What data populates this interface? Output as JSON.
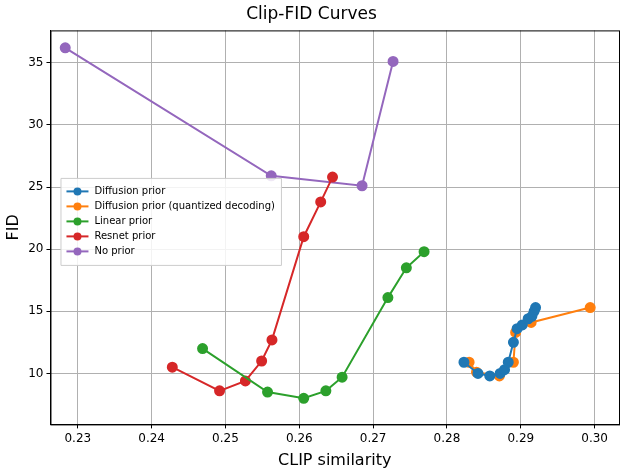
{
  "chart_data": {
    "type": "line",
    "title": "Clip-FID Curves",
    "x_label": "CLIP similarity",
    "y_label": "FID",
    "xlim": [
      0.2263,
      0.3033
    ],
    "ylim": [
      5.9,
      37.6
    ],
    "xticks": [
      0.23,
      0.24,
      0.25,
      0.26,
      0.27,
      0.28,
      0.29,
      {
        "value": 0.3,
        "label": "0.30"
      }
    ],
    "yticks": [
      10,
      15,
      20,
      25,
      30,
      35
    ],
    "grid": true,
    "legend": "center left",
    "marker": "circle",
    "line_style": "solid",
    "series": [
      {
        "name": "Diffusion prior",
        "color": "#1f77b4",
        "x": [
          0.2823,
          0.2842,
          0.2858,
          0.2872,
          0.2878,
          0.2883,
          0.289,
          0.2895,
          0.2902,
          0.291,
          0.2915,
          0.2918,
          0.292
        ],
        "values": [
          10.9,
          10.0,
          9.8,
          10.0,
          10.3,
          10.9,
          12.5,
          13.6,
          13.9,
          14.4,
          14.6,
          15.0,
          15.3
        ]
      },
      {
        "name": "Diffusion prior (quantized decoding)",
        "color": "#ff7f0e",
        "x": [
          0.283,
          0.284,
          0.2871,
          0.289,
          0.2893,
          0.2914,
          0.2994
        ],
        "values": [
          10.9,
          10.1,
          9.8,
          10.9,
          13.3,
          14.1,
          15.3
        ]
      },
      {
        "name": "Linear prior",
        "color": "#2ca02c",
        "x": [
          0.2469,
          0.2557,
          0.2606,
          0.2636,
          0.2658,
          0.272,
          0.2745,
          0.2769
        ],
        "values": [
          12.0,
          8.5,
          8.0,
          8.6,
          9.7,
          16.1,
          18.5,
          19.8
        ]
      },
      {
        "name": "Resnet prior",
        "color": "#d62728",
        "x": [
          0.2428,
          0.2492,
          0.2527,
          0.2549,
          0.2563,
          0.2606,
          0.2629,
          0.2645
        ],
        "values": [
          10.5,
          8.6,
          9.4,
          11.0,
          12.7,
          21.0,
          23.8,
          25.8
        ]
      },
      {
        "name": "No prior",
        "color": "#9467bd",
        "x": [
          0.2283,
          0.2562,
          0.2685,
          0.2727
        ],
        "values": [
          36.2,
          25.9,
          25.1,
          35.1
        ]
      }
    ]
  }
}
